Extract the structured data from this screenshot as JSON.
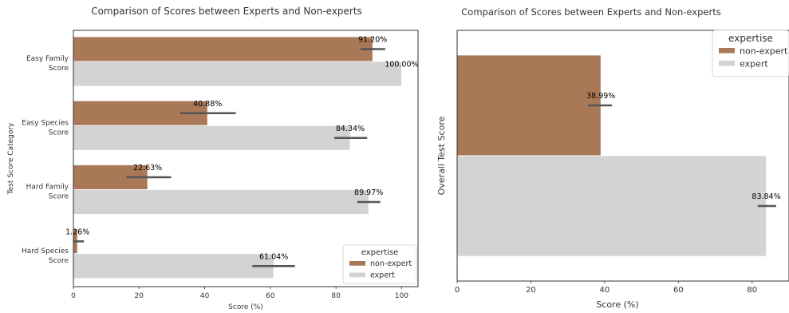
{
  "colors": {
    "non_expert": "#a97856",
    "expert": "#d3d3d3",
    "error_bar": "#555555",
    "axis": "#333333",
    "text": "#333333"
  },
  "chart_data": [
    {
      "type": "bar",
      "orientation": "horizontal",
      "title": "Comparison of Scores between Experts and Non-experts",
      "xlabel": "Score (%)",
      "ylabel": "Test Score Category",
      "xlim": [
        0,
        105
      ],
      "xticks": [
        "0",
        "20",
        "40",
        "60",
        "80",
        "100"
      ],
      "categories": [
        [
          "Easy Family",
          "Score"
        ],
        [
          "Easy Species",
          "Score"
        ],
        [
          "Hard Family",
          "Score"
        ],
        [
          "Hard Species",
          "Score"
        ]
      ],
      "series": [
        {
          "name": "non-expert",
          "values": [
            91.2,
            40.88,
            22.63,
            1.26
          ],
          "labels": [
            "91.20%",
            "40.88%",
            "22.63%",
            "1.26%"
          ],
          "err_low": [
            87.5,
            32.5,
            16.2,
            0.0
          ],
          "err_high": [
            95.0,
            49.5,
            29.8,
            3.2
          ]
        },
        {
          "name": "expert",
          "values": [
            100.0,
            84.34,
            89.97,
            61.04
          ],
          "labels": [
            "100.00%",
            "84.34%",
            "89.97%",
            "61.04%"
          ],
          "err_low": [
            100.0,
            79.5,
            86.5,
            54.5
          ],
          "err_high": [
            100.0,
            89.5,
            93.5,
            67.5
          ]
        }
      ],
      "legend": {
        "title": "expertise",
        "position": "lower-right"
      },
      "grid": false
    },
    {
      "type": "bar",
      "orientation": "horizontal",
      "title": "Comparison of Scores between Experts and Non-experts",
      "xlabel": "Score (%)",
      "ylabel": "Overall Test Score",
      "xlim": [
        0,
        90
      ],
      "xticks": [
        "0",
        "20",
        "40",
        "60",
        "80"
      ],
      "categories": [
        [
          ""
        ]
      ],
      "series": [
        {
          "name": "non-expert",
          "values": [
            38.99
          ],
          "labels": [
            "38.99%"
          ],
          "err_low": [
            35.5
          ],
          "err_high": [
            42.0
          ]
        },
        {
          "name": "expert",
          "values": [
            83.84
          ],
          "labels": [
            "83.84%"
          ],
          "err_low": [
            81.5
          ],
          "err_high": [
            86.5
          ]
        }
      ],
      "legend": {
        "title": "expertise",
        "position": "upper-right"
      },
      "grid": false
    }
  ]
}
